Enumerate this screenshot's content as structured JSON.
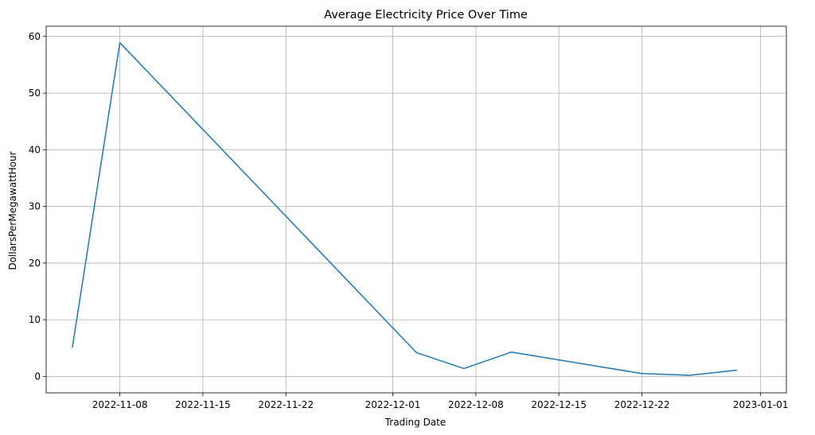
{
  "chart_data": {
    "type": "line",
    "title": "Average Electricity Price Over Time",
    "xlabel": "Trading Date",
    "ylabel": "DollarsPerMegawattHour",
    "grid": true,
    "x_axis_type": "date",
    "xlim": [
      "2022-11-01T19:00",
      "2023-01-03T04:00"
    ],
    "ylim": [
      -2.9,
      61.8
    ],
    "x_ticks": [
      {
        "value": "2022-11-08",
        "label": "2022-11-08"
      },
      {
        "value": "2022-11-15",
        "label": "2022-11-15"
      },
      {
        "value": "2022-11-22",
        "label": "2022-11-22"
      },
      {
        "value": "2022-12-01",
        "label": "2022-12-01"
      },
      {
        "value": "2022-12-08",
        "label": "2022-12-08"
      },
      {
        "value": "2022-12-15",
        "label": "2022-12-15"
      },
      {
        "value": "2022-12-22",
        "label": "2022-12-22"
      },
      {
        "value": "2023-01-01",
        "label": "2023-01-01"
      }
    ],
    "y_ticks": [
      {
        "value": 0,
        "label": "0"
      },
      {
        "value": 10,
        "label": "10"
      },
      {
        "value": 20,
        "label": "20"
      },
      {
        "value": 30,
        "label": "30"
      },
      {
        "value": 40,
        "label": "40"
      },
      {
        "value": 50,
        "label": "50"
      },
      {
        "value": 60,
        "label": "60"
      }
    ],
    "series": [
      {
        "color": "#1f77b4",
        "points": [
          {
            "x": "2022-11-04",
            "y": 5.1
          },
          {
            "x": "2022-11-08",
            "y": 58.9
          },
          {
            "x": "2022-12-03",
            "y": 4.2
          },
          {
            "x": "2022-12-07",
            "y": 1.4
          },
          {
            "x": "2022-12-11",
            "y": 4.3
          },
          {
            "x": "2022-12-22",
            "y": 0.5
          },
          {
            "x": "2022-12-26",
            "y": 0.2
          },
          {
            "x": "2022-12-30",
            "y": 1.1
          }
        ]
      }
    ]
  }
}
